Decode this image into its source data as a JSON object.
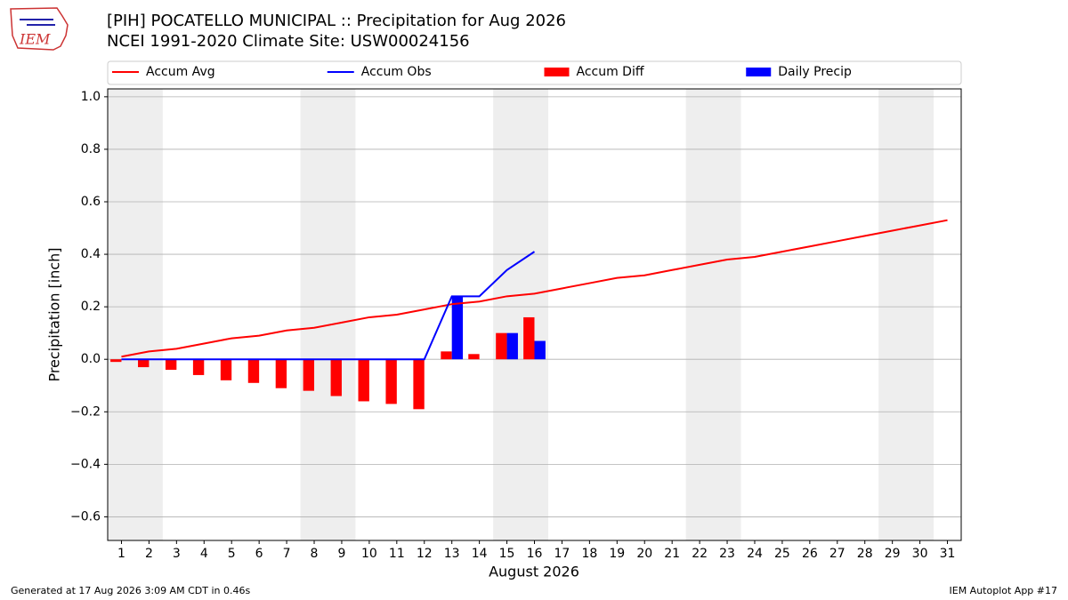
{
  "logo_text": "IEM",
  "footer_left": "Generated at 17 Aug 2026 3:09 AM CDT in 0.46s",
  "footer_right": "IEM Autoplot App #17",
  "chart_data": {
    "type": "bar_line",
    "title": "[PIH] POCATELLO MUNICIPAL :: Precipitation for Aug 2026",
    "subtitle": "NCEI 1991-2020 Climate Site: USW00024156",
    "x_label": "August 2026",
    "y_label": "Precipitation [inch]",
    "x": [
      1,
      2,
      3,
      4,
      5,
      6,
      7,
      8,
      9,
      10,
      11,
      12,
      13,
      14,
      15,
      16,
      17,
      18,
      19,
      20,
      21,
      22,
      23,
      24,
      25,
      26,
      27,
      28,
      29,
      30,
      31
    ],
    "series": [
      {
        "name": "Accum Avg",
        "kind": "line",
        "color": "#ff0000",
        "values": [
          0.01,
          0.03,
          0.04,
          0.06,
          0.08,
          0.09,
          0.11,
          0.12,
          0.14,
          0.16,
          0.17,
          0.19,
          0.21,
          0.22,
          0.24,
          0.25,
          0.27,
          0.29,
          0.31,
          0.32,
          0.34,
          0.36,
          0.38,
          0.39,
          0.41,
          0.43,
          0.45,
          0.47,
          0.49,
          0.51,
          0.53
        ]
      },
      {
        "name": "Accum Obs",
        "kind": "line",
        "color": "#0000ff",
        "values": [
          0,
          0,
          0,
          0,
          0,
          0,
          0,
          0,
          0,
          0,
          0,
          0,
          0.24,
          0.24,
          0.34,
          0.41,
          null,
          null,
          null,
          null,
          null,
          null,
          null,
          null,
          null,
          null,
          null,
          null,
          null,
          null,
          null
        ]
      },
      {
        "name": "Accum Diff",
        "kind": "bar",
        "color": "#ff0000",
        "values": [
          -0.01,
          -0.03,
          -0.04,
          -0.06,
          -0.08,
          -0.09,
          -0.11,
          -0.12,
          -0.14,
          -0.16,
          -0.17,
          -0.19,
          0.03,
          0.02,
          0.1,
          0.16,
          null,
          null,
          null,
          null,
          null,
          null,
          null,
          null,
          null,
          null,
          null,
          null,
          null,
          null,
          null
        ]
      },
      {
        "name": "Daily Precip",
        "kind": "bar",
        "color": "#0000ff",
        "values": [
          0,
          0,
          0,
          0,
          0,
          0,
          0,
          0,
          0,
          0,
          0,
          0,
          0.24,
          0,
          0.1,
          0.07,
          null,
          null,
          null,
          null,
          null,
          null,
          null,
          null,
          null,
          null,
          null,
          null,
          null,
          null,
          null
        ]
      }
    ],
    "shaded_x_spans": [
      [
        0.5,
        2.5
      ],
      [
        7.5,
        9.5
      ],
      [
        14.5,
        16.5
      ],
      [
        21.5,
        23.5
      ],
      [
        28.5,
        30.5
      ]
    ],
    "shade_color": "#eeeeee",
    "xlim": [
      0.5,
      31.5
    ],
    "ylim": [
      -0.69,
      1.03
    ],
    "xticks": [
      1,
      2,
      3,
      4,
      5,
      6,
      7,
      8,
      9,
      10,
      11,
      12,
      13,
      14,
      15,
      16,
      17,
      18,
      19,
      20,
      21,
      22,
      23,
      24,
      25,
      26,
      27,
      28,
      29,
      30,
      31
    ],
    "yticks": [
      {
        "value": -0.6,
        "label": "−0.6"
      },
      {
        "value": -0.4,
        "label": "−0.4"
      },
      {
        "value": -0.2,
        "label": "−0.2"
      },
      {
        "value": 0.0,
        "label": "0.0"
      },
      {
        "value": 0.2,
        "label": "0.2"
      },
      {
        "value": 0.4,
        "label": "0.4"
      },
      {
        "value": 0.6,
        "label": "0.6"
      },
      {
        "value": 0.8,
        "label": "0.8"
      },
      {
        "value": 1.0,
        "label": "1.0"
      }
    ],
    "grid": true,
    "legend": "top"
  }
}
